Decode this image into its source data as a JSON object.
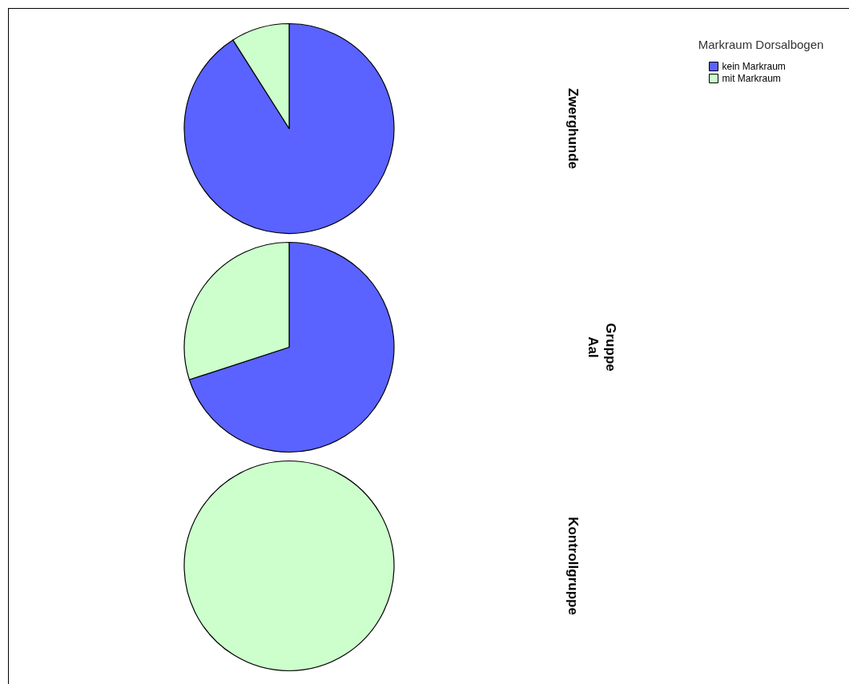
{
  "chart_data": {
    "type": "pie",
    "ylabel": "Gruppe",
    "legend": "top right",
    "legend_title": "Markraum Dorsalbogen",
    "categories": [
      "kein Markraum",
      "mit Markraum"
    ],
    "colors": [
      "#5a62ff",
      "#ccffcc"
    ],
    "series": [
      {
        "name": "Zwerghunde",
        "values": [
          91,
          9
        ]
      },
      {
        "name": "Aal",
        "values": [
          70,
          30
        ]
      },
      {
        "name": "Kontrollgruppe",
        "values": [
          0,
          100
        ]
      }
    ]
  }
}
